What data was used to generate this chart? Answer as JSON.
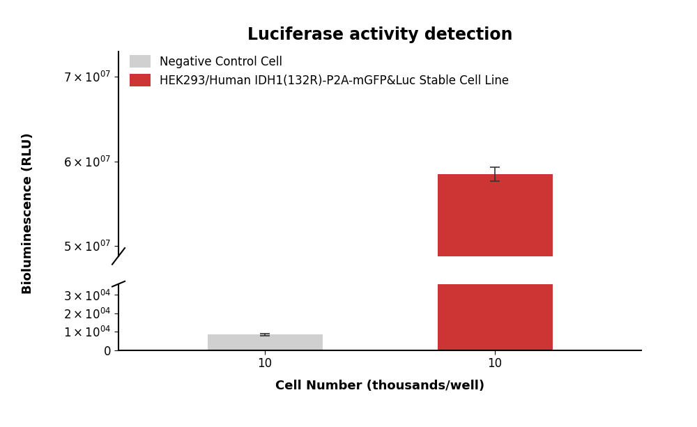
{
  "title": "Luciferase activity detection",
  "xlabel": "Cell Number (thousands/well)",
  "ylabel": "Bioluminescence (RLU)",
  "categories": [
    "10",
    "10"
  ],
  "bar_values": [
    8500,
    58500000.0
  ],
  "bar_errors": [
    600,
    800000.0
  ],
  "bar_colors": [
    "#d0d0d0",
    "#cd3535"
  ],
  "legend_labels": [
    "Negative Control Cell",
    "HEK293/Human IDH1(132R)-P2A-mGFP&Luc Stable Cell Line"
  ],
  "legend_colors": [
    "#d0d0d0",
    "#cd3535"
  ],
  "lower_ylim": [
    0,
    36000
  ],
  "upper_ylim": [
    48800000.0,
    73000000.0
  ],
  "lower_yticks": [
    0,
    10000,
    20000,
    30000
  ],
  "upper_yticks": [
    50000000.0,
    60000000.0,
    70000000.0
  ],
  "background_color": "#ffffff",
  "title_fontsize": 17,
  "label_fontsize": 13,
  "tick_fontsize": 12,
  "legend_fontsize": 12,
  "x_positions": [
    0.28,
    0.72
  ],
  "bar_width": 0.22,
  "xlim": [
    0,
    1
  ]
}
